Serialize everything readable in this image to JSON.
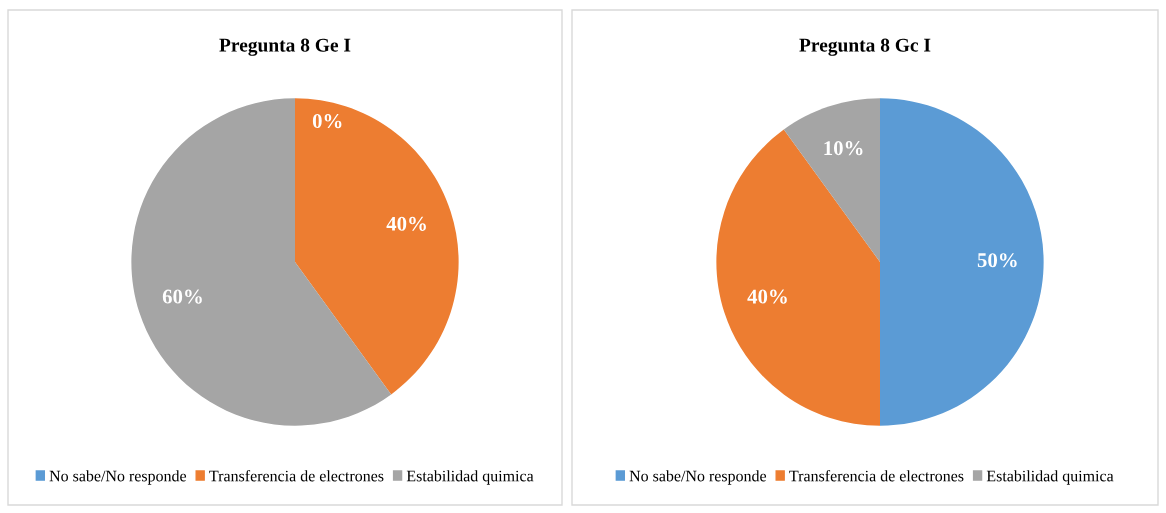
{
  "chart_data": [
    {
      "type": "pie",
      "title": "Pregunta 8 Ge I",
      "categories": [
        "No sabe/No responde",
        "Transferencia de electrones",
        "Estabilidad quimica"
      ],
      "values": [
        0,
        40,
        60
      ],
      "colors": [
        "#5b9bd5",
        "#ed7d31",
        "#a5a5a5"
      ],
      "value_labels": [
        "0%",
        "40%",
        "60%"
      ],
      "legend": "bottom"
    },
    {
      "type": "pie",
      "title": "Pregunta 8 Gc I",
      "categories": [
        "No sabe/No responde",
        "Transferencia de electrones",
        "Estabilidad quimica"
      ],
      "values": [
        50,
        40,
        10
      ],
      "colors": [
        "#5b9bd5",
        "#ed7d31",
        "#a5a5a5"
      ],
      "value_labels": [
        "50%",
        "40%",
        "10%"
      ],
      "legend": "bottom"
    }
  ]
}
